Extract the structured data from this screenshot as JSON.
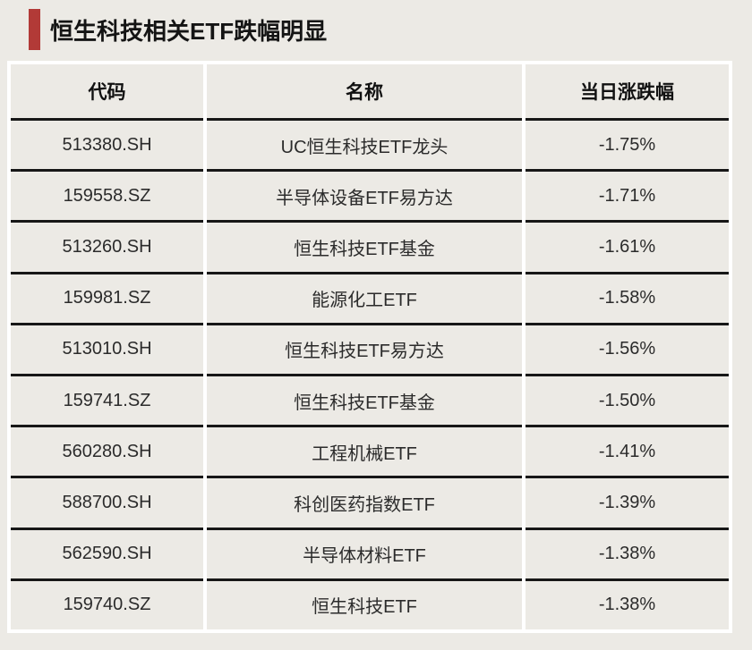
{
  "title": {
    "text": "恒生科技相关ETF跌幅明显"
  },
  "colors": {
    "background": "#eceae5",
    "accent_bar": "#b23a37",
    "divider": "#ffffff",
    "row_line": "#171717",
    "text": "#2b2b2b"
  },
  "chart_data": {
    "type": "table",
    "title": "恒生科技相关ETF跌幅明显",
    "columns": [
      "代码",
      "名称",
      "当日涨跌幅"
    ],
    "rows": [
      [
        "513380.SH",
        "UC恒生科技ETF龙头",
        "-1.75%"
      ],
      [
        "159558.SZ",
        "半导体设备ETF易方达",
        "-1.71%"
      ],
      [
        "513260.SH",
        "恒生科技ETF基金",
        "-1.61%"
      ],
      [
        "159981.SZ",
        "能源化工ETF",
        "-1.58%"
      ],
      [
        "513010.SH",
        "恒生科技ETF易方达",
        "-1.56%"
      ],
      [
        "159741.SZ",
        "恒生科技ETF基金",
        "-1.50%"
      ],
      [
        "560280.SH",
        "工程机械ETF",
        "-1.41%"
      ],
      [
        "588700.SH",
        "科创医药指数ETF",
        "-1.39%"
      ],
      [
        "562590.SH",
        "半导体材料ETF",
        "-1.38%"
      ],
      [
        "159740.SZ",
        "恒生科技ETF",
        "-1.38%"
      ]
    ]
  }
}
